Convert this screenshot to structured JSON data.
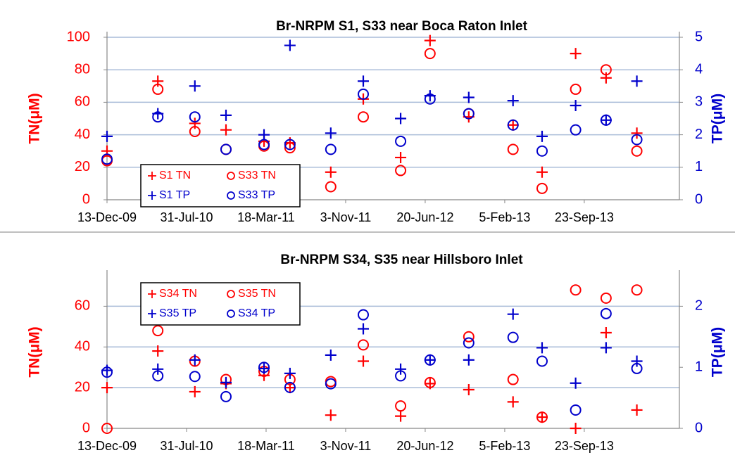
{
  "chart_data": [
    {
      "type": "scatter",
      "title": "Br-NRPM S1, S33 near Boca Raton Inlet",
      "y_label": "TN(μM)",
      "y2_label": "TP(μM)",
      "x": [
        "2009-12-13",
        "2010-05-09",
        "2010-08-24",
        "2010-11-22",
        "2011-03-12",
        "2011-05-26",
        "2011-09-21",
        "2011-12-24",
        "2012-04-10",
        "2012-07-04",
        "2012-10-24",
        "2013-03-01",
        "2013-05-24",
        "2013-08-29",
        "2013-11-25",
        "2014-02-22"
      ],
      "xlim": [
        "2009-12-13",
        "2014-06-25"
      ],
      "xticks": [
        {
          "value": "2009-12-13",
          "label": "13-Dec-09"
        },
        {
          "value": "2010-07-31",
          "label": "31-Jul-10"
        },
        {
          "value": "2011-03-18",
          "label": "18-Mar-11"
        },
        {
          "value": "2011-11-03",
          "label": "3-Nov-11"
        },
        {
          "value": "2012-06-20",
          "label": "20-Jun-12"
        },
        {
          "value": "2013-02-05",
          "label": "5-Feb-13"
        },
        {
          "value": "2013-09-23",
          "label": "23-Sep-13"
        }
      ],
      "ylim": [
        0,
        100
      ],
      "yticks": [
        0,
        20,
        40,
        60,
        80,
        100
      ],
      "y2lim": [
        0,
        5
      ],
      "y2ticks": [
        0,
        1,
        2,
        3,
        4,
        5
      ],
      "grid": true,
      "legend": "lower left",
      "series": [
        {
          "name": "S1 TN",
          "color": "#ff0000",
          "marker": "+",
          "values": [
            30,
            73,
            47,
            43,
            36,
            35,
            17,
            62,
            26,
            98,
            51,
            46,
            17,
            90,
            75,
            41
          ]
        },
        {
          "name": "S33 TN",
          "color": "#ff0000",
          "marker": "o",
          "values": [
            24,
            68,
            42,
            31,
            33,
            32,
            8,
            51,
            18,
            90,
            53,
            31,
            7,
            68,
            80,
            30
          ]
        },
        {
          "name": "S1 TP",
          "color": "#0000cc",
          "marker": "+",
          "axis": "y2",
          "values": [
            1.95,
            2.65,
            3.5,
            2.6,
            2.0,
            4.75,
            2.05,
            3.65,
            2.5,
            3.2,
            3.15,
            3.05,
            1.95,
            2.9,
            2.45,
            3.65
          ]
        },
        {
          "name": "S33 TP",
          "color": "#0000cc",
          "marker": "o",
          "axis": "y2",
          "values": [
            1.25,
            2.55,
            2.55,
            1.55,
            1.7,
            1.7,
            1.55,
            3.25,
            1.8,
            3.1,
            2.65,
            2.3,
            1.5,
            2.15,
            2.45,
            1.85
          ]
        }
      ]
    },
    {
      "type": "scatter",
      "title": "Br-NRPM S34, S35 near Hillsboro Inlet",
      "y_label": "TN(μM)",
      "y2_label": "TP(μM)",
      "x": [
        "2009-12-13",
        "2010-05-09",
        "2010-08-24",
        "2010-11-22",
        "2011-03-12",
        "2011-05-26",
        "2011-09-21",
        "2011-12-24",
        "2012-04-10",
        "2012-07-04",
        "2012-10-24",
        "2013-03-01",
        "2013-05-24",
        "2013-08-29",
        "2013-11-25",
        "2014-02-22"
      ],
      "xlim": [
        "2009-12-13",
        "2014-06-25"
      ],
      "xticks": [
        {
          "value": "2009-12-13",
          "label": "13-Dec-09"
        },
        {
          "value": "2010-07-31",
          "label": "31-Jul-10"
        },
        {
          "value": "2011-03-18",
          "label": "18-Mar-11"
        },
        {
          "value": "2011-11-03",
          "label": "3-Nov-11"
        },
        {
          "value": "2012-06-20",
          "label": "20-Jun-12"
        },
        {
          "value": "2013-02-05",
          "label": "5-Feb-13"
        },
        {
          "value": "2013-09-23",
          "label": "23-Sep-13"
        }
      ],
      "ylim": [
        0,
        75
      ],
      "yticks": [
        0,
        20,
        40,
        60
      ],
      "y2lim": [
        0,
        2.5
      ],
      "y2ticks": [
        0,
        1,
        2
      ],
      "grid": true,
      "legend": "upper left",
      "series": [
        {
          "name": "S34 TN",
          "color": "#ff0000",
          "marker": "+",
          "values": [
            20,
            38,
            18,
            22,
            26,
            20,
            6.5,
            33,
            6,
            22,
            19,
            13,
            5.5,
            0,
            47,
            9
          ]
        },
        {
          "name": "S35 TN",
          "color": "#ff0000",
          "marker": "o",
          "values": [
            0,
            48,
            33,
            24,
            28,
            24,
            23,
            41,
            11,
            22.5,
            45,
            24,
            5.5,
            68,
            64,
            68
          ]
        },
        {
          "name": "S35 TP",
          "color": "#0000cc",
          "marker": "+",
          "axis": "y2",
          "values": [
            0.95,
            0.97,
            1.12,
            0.75,
            0.98,
            0.9,
            1.2,
            1.63,
            0.97,
            1.12,
            1.12,
            1.87,
            1.32,
            0.74,
            1.32,
            1.1
          ]
        },
        {
          "name": "S34 TP",
          "color": "#0000cc",
          "marker": "o",
          "axis": "y2",
          "values": [
            0.92,
            0.86,
            0.85,
            0.52,
            1.0,
            0.67,
            0.73,
            1.86,
            0.86,
            1.12,
            1.4,
            1.49,
            1.1,
            0.3,
            1.88,
            0.98
          ]
        }
      ]
    }
  ]
}
